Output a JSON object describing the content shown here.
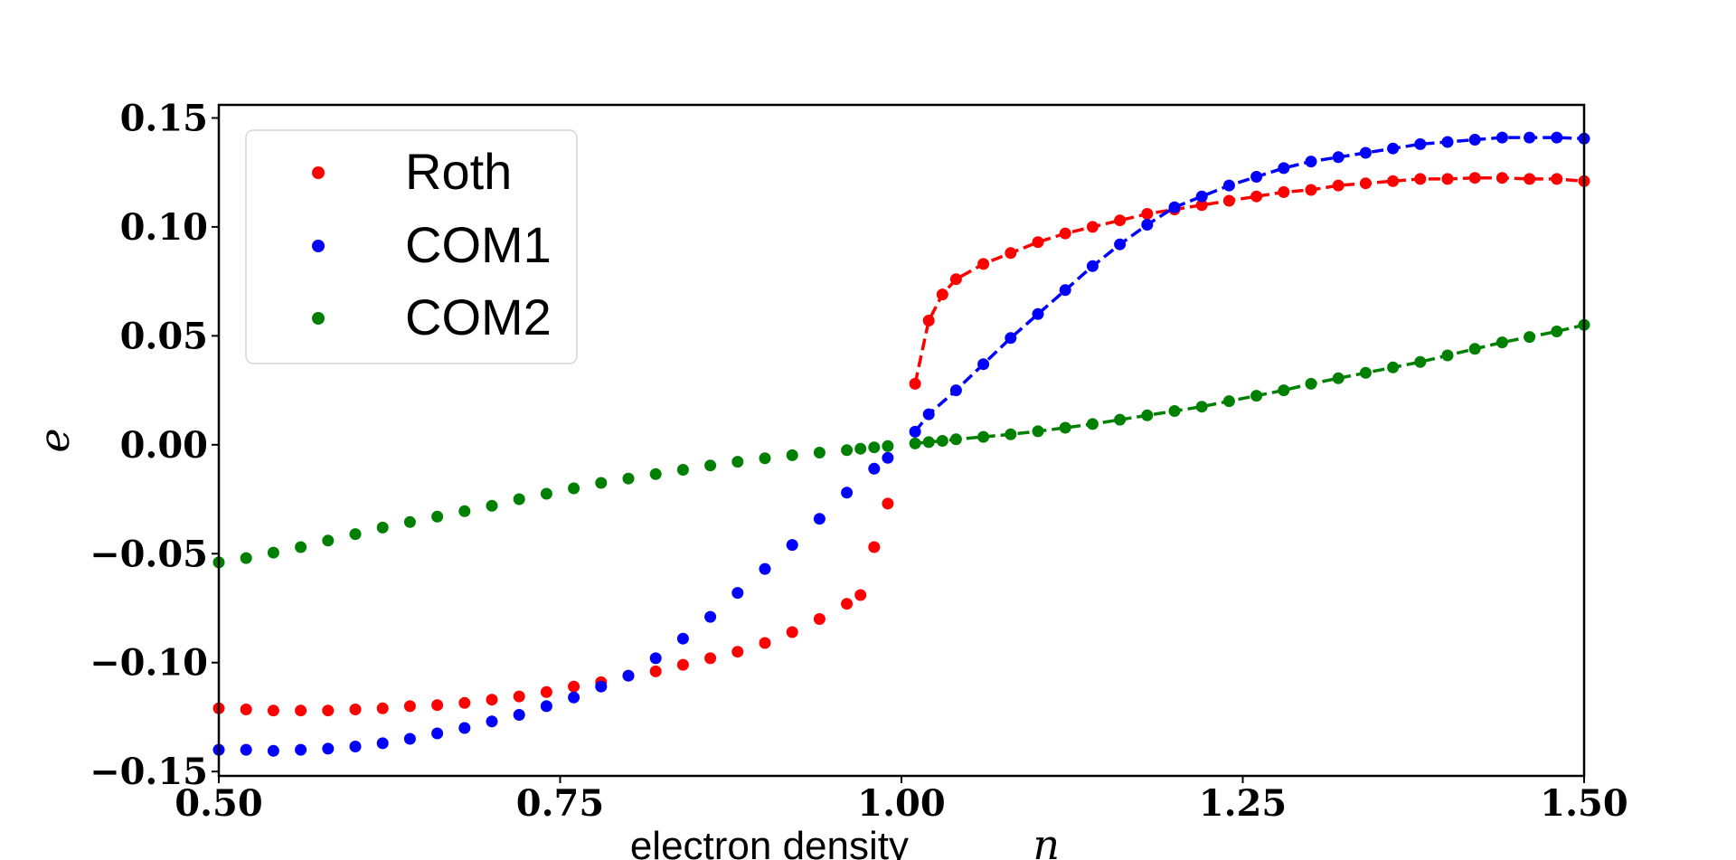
{
  "chart_data": {
    "type": "scatter",
    "title": "",
    "xlabel": "electron density",
    "xlabel_var": "n",
    "ylabel": "e",
    "xlim": [
      0.5,
      1.5
    ],
    "ylim": [
      -0.152,
      0.156
    ],
    "xticks": [
      0.5,
      0.75,
      1.0,
      1.25,
      1.5
    ],
    "xtick_labels": [
      "0.50",
      "0.75",
      "1.00",
      "1.25",
      "1.50"
    ],
    "yticks": [
      0.15,
      0.1,
      0.05,
      0.0,
      -0.05,
      -0.1,
      -0.15
    ],
    "ytick_labels": [
      "0.15",
      "0.10",
      "0.05",
      "0.00",
      "−0.05",
      "−0.10",
      "−0.15"
    ],
    "grid": false,
    "legend_position": "top-left",
    "series": [
      {
        "name": "Roth",
        "color": "#ff0000",
        "dashed_from_x": 1.01,
        "x": [
          0.5,
          0.52,
          0.54,
          0.56,
          0.58,
          0.6,
          0.62,
          0.64,
          0.66,
          0.68,
          0.7,
          0.72,
          0.74,
          0.76,
          0.78,
          0.8,
          0.82,
          0.84,
          0.86,
          0.88,
          0.9,
          0.92,
          0.94,
          0.96,
          0.97,
          0.98,
          0.99,
          1.01,
          1.02,
          1.03,
          1.04,
          1.06,
          1.08,
          1.1,
          1.12,
          1.14,
          1.16,
          1.18,
          1.2,
          1.22,
          1.24,
          1.26,
          1.28,
          1.3,
          1.32,
          1.34,
          1.36,
          1.38,
          1.4,
          1.42,
          1.44,
          1.46,
          1.48,
          1.5
        ],
        "y": [
          -0.121,
          -0.1215,
          -0.122,
          -0.122,
          -0.122,
          -0.1215,
          -0.121,
          -0.12,
          -0.1195,
          -0.1185,
          -0.117,
          -0.1155,
          -0.1135,
          -0.111,
          -0.109,
          -0.106,
          -0.104,
          -0.101,
          -0.098,
          -0.095,
          -0.091,
          -0.086,
          -0.08,
          -0.073,
          -0.069,
          -0.047,
          -0.027,
          0.028,
          0.057,
          0.069,
          0.076,
          0.083,
          0.088,
          0.093,
          0.097,
          0.1,
          0.103,
          0.106,
          0.108,
          0.11,
          0.112,
          0.114,
          0.116,
          0.117,
          0.119,
          0.12,
          0.121,
          0.122,
          0.122,
          0.1225,
          0.1225,
          0.122,
          0.122,
          0.121
        ]
      },
      {
        "name": "COM1",
        "color": "#0000ff",
        "dashed_from_x": 1.01,
        "x": [
          0.5,
          0.52,
          0.54,
          0.56,
          0.58,
          0.6,
          0.62,
          0.64,
          0.66,
          0.68,
          0.7,
          0.72,
          0.74,
          0.76,
          0.78,
          0.8,
          0.82,
          0.84,
          0.86,
          0.88,
          0.9,
          0.92,
          0.94,
          0.96,
          0.98,
          0.99,
          1.01,
          1.02,
          1.04,
          1.06,
          1.08,
          1.1,
          1.12,
          1.14,
          1.16,
          1.18,
          1.2,
          1.22,
          1.24,
          1.26,
          1.28,
          1.3,
          1.32,
          1.34,
          1.36,
          1.38,
          1.4,
          1.42,
          1.44,
          1.46,
          1.48,
          1.5
        ],
        "y": [
          -0.14,
          -0.14,
          -0.1405,
          -0.14,
          -0.1395,
          -0.1385,
          -0.137,
          -0.135,
          -0.1325,
          -0.13,
          -0.127,
          -0.124,
          -0.12,
          -0.116,
          -0.111,
          -0.106,
          -0.098,
          -0.089,
          -0.079,
          -0.068,
          -0.057,
          -0.046,
          -0.034,
          -0.022,
          -0.011,
          -0.006,
          0.006,
          0.014,
          0.025,
          0.037,
          0.049,
          0.06,
          0.071,
          0.082,
          0.092,
          0.101,
          0.109,
          0.114,
          0.119,
          0.123,
          0.127,
          0.13,
          0.132,
          0.134,
          0.136,
          0.138,
          0.139,
          0.14,
          0.141,
          0.141,
          0.141,
          0.1405
        ]
      },
      {
        "name": "COM2",
        "color": "#008000",
        "dashed_from_x": 1.01,
        "x": [
          0.5,
          0.52,
          0.54,
          0.56,
          0.58,
          0.6,
          0.62,
          0.64,
          0.66,
          0.68,
          0.7,
          0.72,
          0.74,
          0.76,
          0.78,
          0.8,
          0.82,
          0.84,
          0.86,
          0.88,
          0.9,
          0.92,
          0.94,
          0.96,
          0.97,
          0.98,
          0.99,
          1.01,
          1.02,
          1.03,
          1.04,
          1.06,
          1.08,
          1.1,
          1.12,
          1.14,
          1.16,
          1.18,
          1.2,
          1.22,
          1.24,
          1.26,
          1.28,
          1.3,
          1.32,
          1.34,
          1.36,
          1.38,
          1.4,
          1.42,
          1.44,
          1.46,
          1.48,
          1.5
        ],
        "y": [
          -0.054,
          -0.052,
          -0.0495,
          -0.047,
          -0.044,
          -0.041,
          -0.038,
          -0.0355,
          -0.033,
          -0.0305,
          -0.028,
          -0.025,
          -0.0225,
          -0.02,
          -0.0175,
          -0.0155,
          -0.0135,
          -0.0115,
          -0.0095,
          -0.0078,
          -0.0062,
          -0.0048,
          -0.0036,
          -0.0025,
          -0.0018,
          -0.0012,
          -0.0006,
          0.0006,
          0.0012,
          0.0018,
          0.0025,
          0.0036,
          0.0048,
          0.0062,
          0.0078,
          0.0095,
          0.0115,
          0.0135,
          0.0155,
          0.0175,
          0.02,
          0.0225,
          0.025,
          0.028,
          0.0305,
          0.033,
          0.0355,
          0.038,
          0.041,
          0.044,
          0.047,
          0.0495,
          0.052,
          0.055
        ]
      }
    ]
  }
}
